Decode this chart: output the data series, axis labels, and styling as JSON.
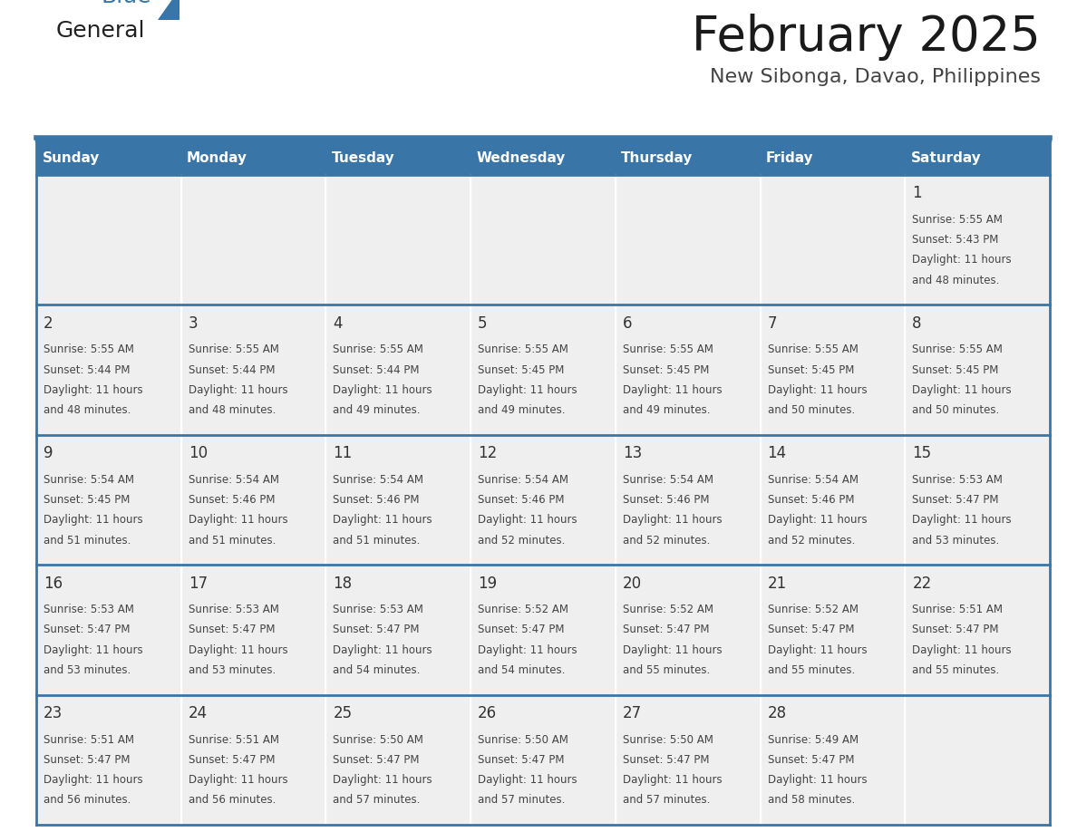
{
  "title": "February 2025",
  "subtitle": "New Sibonga, Davao, Philippines",
  "days_of_week": [
    "Sunday",
    "Monday",
    "Tuesday",
    "Wednesday",
    "Thursday",
    "Friday",
    "Saturday"
  ],
  "header_bg": "#3A75A8",
  "header_text": "#FFFFFF",
  "cell_bg": "#EFEFEF",
  "border_color": "#3A75A8",
  "day_num_color": "#333333",
  "cell_text_color": "#444444",
  "title_color": "#1a1a1a",
  "subtitle_color": "#444444",
  "days": [
    {
      "date": 1,
      "row": 0,
      "col": 6,
      "lines": [
        "Sunrise: 5:55 AM",
        "Sunset: 5:43 PM",
        "Daylight: 11 hours",
        "and 48 minutes."
      ]
    },
    {
      "date": 2,
      "row": 1,
      "col": 0,
      "lines": [
        "Sunrise: 5:55 AM",
        "Sunset: 5:44 PM",
        "Daylight: 11 hours",
        "and 48 minutes."
      ]
    },
    {
      "date": 3,
      "row": 1,
      "col": 1,
      "lines": [
        "Sunrise: 5:55 AM",
        "Sunset: 5:44 PM",
        "Daylight: 11 hours",
        "and 48 minutes."
      ]
    },
    {
      "date": 4,
      "row": 1,
      "col": 2,
      "lines": [
        "Sunrise: 5:55 AM",
        "Sunset: 5:44 PM",
        "Daylight: 11 hours",
        "and 49 minutes."
      ]
    },
    {
      "date": 5,
      "row": 1,
      "col": 3,
      "lines": [
        "Sunrise: 5:55 AM",
        "Sunset: 5:45 PM",
        "Daylight: 11 hours",
        "and 49 minutes."
      ]
    },
    {
      "date": 6,
      "row": 1,
      "col": 4,
      "lines": [
        "Sunrise: 5:55 AM",
        "Sunset: 5:45 PM",
        "Daylight: 11 hours",
        "and 49 minutes."
      ]
    },
    {
      "date": 7,
      "row": 1,
      "col": 5,
      "lines": [
        "Sunrise: 5:55 AM",
        "Sunset: 5:45 PM",
        "Daylight: 11 hours",
        "and 50 minutes."
      ]
    },
    {
      "date": 8,
      "row": 1,
      "col": 6,
      "lines": [
        "Sunrise: 5:55 AM",
        "Sunset: 5:45 PM",
        "Daylight: 11 hours",
        "and 50 minutes."
      ]
    },
    {
      "date": 9,
      "row": 2,
      "col": 0,
      "lines": [
        "Sunrise: 5:54 AM",
        "Sunset: 5:45 PM",
        "Daylight: 11 hours",
        "and 51 minutes."
      ]
    },
    {
      "date": 10,
      "row": 2,
      "col": 1,
      "lines": [
        "Sunrise: 5:54 AM",
        "Sunset: 5:46 PM",
        "Daylight: 11 hours",
        "and 51 minutes."
      ]
    },
    {
      "date": 11,
      "row": 2,
      "col": 2,
      "lines": [
        "Sunrise: 5:54 AM",
        "Sunset: 5:46 PM",
        "Daylight: 11 hours",
        "and 51 minutes."
      ]
    },
    {
      "date": 12,
      "row": 2,
      "col": 3,
      "lines": [
        "Sunrise: 5:54 AM",
        "Sunset: 5:46 PM",
        "Daylight: 11 hours",
        "and 52 minutes."
      ]
    },
    {
      "date": 13,
      "row": 2,
      "col": 4,
      "lines": [
        "Sunrise: 5:54 AM",
        "Sunset: 5:46 PM",
        "Daylight: 11 hours",
        "and 52 minutes."
      ]
    },
    {
      "date": 14,
      "row": 2,
      "col": 5,
      "lines": [
        "Sunrise: 5:54 AM",
        "Sunset: 5:46 PM",
        "Daylight: 11 hours",
        "and 52 minutes."
      ]
    },
    {
      "date": 15,
      "row": 2,
      "col": 6,
      "lines": [
        "Sunrise: 5:53 AM",
        "Sunset: 5:47 PM",
        "Daylight: 11 hours",
        "and 53 minutes."
      ]
    },
    {
      "date": 16,
      "row": 3,
      "col": 0,
      "lines": [
        "Sunrise: 5:53 AM",
        "Sunset: 5:47 PM",
        "Daylight: 11 hours",
        "and 53 minutes."
      ]
    },
    {
      "date": 17,
      "row": 3,
      "col": 1,
      "lines": [
        "Sunrise: 5:53 AM",
        "Sunset: 5:47 PM",
        "Daylight: 11 hours",
        "and 53 minutes."
      ]
    },
    {
      "date": 18,
      "row": 3,
      "col": 2,
      "lines": [
        "Sunrise: 5:53 AM",
        "Sunset: 5:47 PM",
        "Daylight: 11 hours",
        "and 54 minutes."
      ]
    },
    {
      "date": 19,
      "row": 3,
      "col": 3,
      "lines": [
        "Sunrise: 5:52 AM",
        "Sunset: 5:47 PM",
        "Daylight: 11 hours",
        "and 54 minutes."
      ]
    },
    {
      "date": 20,
      "row": 3,
      "col": 4,
      "lines": [
        "Sunrise: 5:52 AM",
        "Sunset: 5:47 PM",
        "Daylight: 11 hours",
        "and 55 minutes."
      ]
    },
    {
      "date": 21,
      "row": 3,
      "col": 5,
      "lines": [
        "Sunrise: 5:52 AM",
        "Sunset: 5:47 PM",
        "Daylight: 11 hours",
        "and 55 minutes."
      ]
    },
    {
      "date": 22,
      "row": 3,
      "col": 6,
      "lines": [
        "Sunrise: 5:51 AM",
        "Sunset: 5:47 PM",
        "Daylight: 11 hours",
        "and 55 minutes."
      ]
    },
    {
      "date": 23,
      "row": 4,
      "col": 0,
      "lines": [
        "Sunrise: 5:51 AM",
        "Sunset: 5:47 PM",
        "Daylight: 11 hours",
        "and 56 minutes."
      ]
    },
    {
      "date": 24,
      "row": 4,
      "col": 1,
      "lines": [
        "Sunrise: 5:51 AM",
        "Sunset: 5:47 PM",
        "Daylight: 11 hours",
        "and 56 minutes."
      ]
    },
    {
      "date": 25,
      "row": 4,
      "col": 2,
      "lines": [
        "Sunrise: 5:50 AM",
        "Sunset: 5:47 PM",
        "Daylight: 11 hours",
        "and 57 minutes."
      ]
    },
    {
      "date": 26,
      "row": 4,
      "col": 3,
      "lines": [
        "Sunrise: 5:50 AM",
        "Sunset: 5:47 PM",
        "Daylight: 11 hours",
        "and 57 minutes."
      ]
    },
    {
      "date": 27,
      "row": 4,
      "col": 4,
      "lines": [
        "Sunrise: 5:50 AM",
        "Sunset: 5:47 PM",
        "Daylight: 11 hours",
        "and 57 minutes."
      ]
    },
    {
      "date": 28,
      "row": 4,
      "col": 5,
      "lines": [
        "Sunrise: 5:49 AM",
        "Sunset: 5:47 PM",
        "Daylight: 11 hours",
        "and 58 minutes."
      ]
    }
  ],
  "num_rows": 5,
  "num_cols": 7
}
